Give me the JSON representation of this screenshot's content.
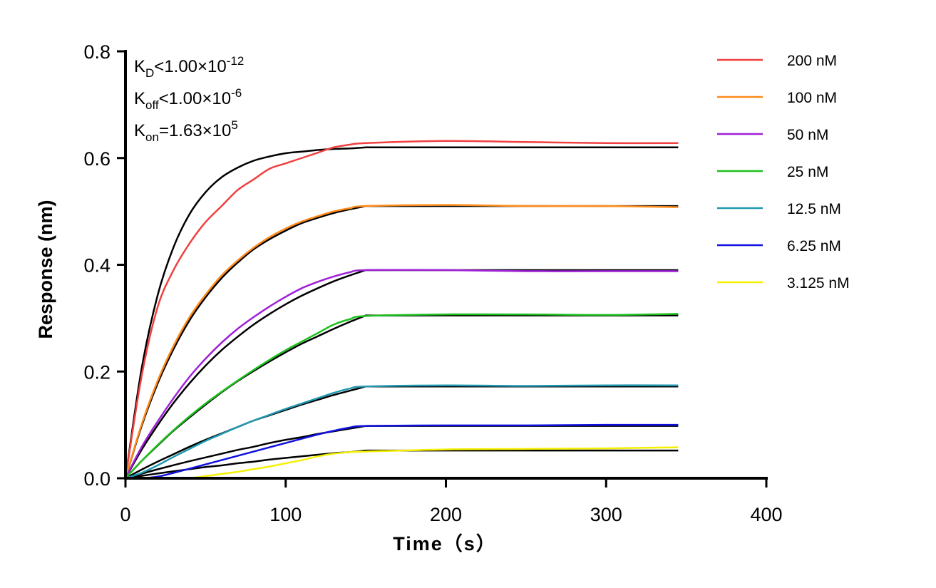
{
  "chart_data": {
    "type": "line",
    "xlabel": "Time（s）",
    "ylabel": "Response (nm)",
    "xlim": [
      0,
      400
    ],
    "ylim": [
      0,
      0.8
    ],
    "xticks": [
      "0",
      "100",
      "200",
      "300",
      "400"
    ],
    "yticks": [
      "0.0",
      "0.2",
      "0.4",
      "0.6",
      "0.8"
    ],
    "grid": false,
    "legend_position": "right",
    "annotations": [
      {
        "main": "K",
        "sub": "D",
        "rel": "<1.00×10",
        "sup": "-12"
      },
      {
        "main": "K",
        "sub": "off",
        "rel": "<1.00×10",
        "sup": "-6"
      },
      {
        "main": "K",
        "sub": "on",
        "rel": "=1.63×10",
        "sup": "5"
      }
    ],
    "x": [
      0,
      10,
      20,
      30,
      40,
      50,
      60,
      70,
      80,
      90,
      100,
      110,
      120,
      130,
      140,
      150,
      200,
      250,
      300,
      345
    ],
    "fit_color": "#000000",
    "series": [
      {
        "name": "200 nM",
        "color": "#f04040",
        "values": [
          0,
          0.19,
          0.32,
          0.39,
          0.44,
          0.48,
          0.51,
          0.54,
          0.56,
          0.58,
          0.59,
          0.6,
          0.61,
          0.62,
          0.625,
          0.628,
          0.632,
          0.63,
          0.628,
          0.628
        ],
        "fit": [
          0,
          0.204,
          0.342,
          0.433,
          0.495,
          0.536,
          0.564,
          0.582,
          0.595,
          0.603,
          0.609,
          0.612,
          0.615,
          0.617,
          0.618,
          0.62,
          0.62,
          0.62,
          0.62,
          0.62
        ]
      },
      {
        "name": "100 nM",
        "color": "#ff8c1a",
        "values": [
          0,
          0.1,
          0.182,
          0.248,
          0.302,
          0.344,
          0.38,
          0.408,
          0.432,
          0.452,
          0.468,
          0.481,
          0.491,
          0.5,
          0.506,
          0.51,
          0.512,
          0.51,
          0.51,
          0.508
        ],
        "fit": [
          0,
          0.097,
          0.177,
          0.242,
          0.296,
          0.339,
          0.375,
          0.404,
          0.429,
          0.448,
          0.464,
          0.478,
          0.488,
          0.497,
          0.504,
          0.51,
          0.51,
          0.51,
          0.51,
          0.51
        ]
      },
      {
        "name": "50 nM",
        "color": "#a020d8",
        "values": [
          0,
          0.058,
          0.106,
          0.15,
          0.19,
          0.224,
          0.254,
          0.28,
          0.302,
          0.322,
          0.34,
          0.356,
          0.368,
          0.378,
          0.386,
          0.39,
          0.39,
          0.388,
          0.388,
          0.388
        ],
        "fit": [
          0,
          0.053,
          0.099,
          0.141,
          0.178,
          0.211,
          0.24,
          0.265,
          0.288,
          0.308,
          0.326,
          0.342,
          0.356,
          0.369,
          0.38,
          0.39,
          0.39,
          0.39,
          0.39,
          0.39
        ]
      },
      {
        "name": "25 nM",
        "color": "#1ec01e",
        "values": [
          0,
          0.032,
          0.062,
          0.09,
          0.116,
          0.14,
          0.162,
          0.183,
          0.203,
          0.222,
          0.24,
          0.256,
          0.272,
          0.288,
          0.298,
          0.304,
          0.307,
          0.307,
          0.306,
          0.308
        ],
        "fit": [
          0,
          0.032,
          0.061,
          0.089,
          0.114,
          0.138,
          0.161,
          0.182,
          0.201,
          0.219,
          0.236,
          0.252,
          0.266,
          0.28,
          0.293,
          0.305,
          0.305,
          0.305,
          0.305,
          0.305
        ]
      },
      {
        "name": "12.5 nM",
        "color": "#2099b0",
        "values": [
          0,
          0.01,
          0.024,
          0.04,
          0.055,
          0.07,
          0.083,
          0.096,
          0.108,
          0.119,
          0.13,
          0.14,
          0.15,
          0.16,
          0.168,
          0.172,
          0.174,
          0.173,
          0.174,
          0.174
        ],
        "fit": [
          0,
          0.016,
          0.031,
          0.045,
          0.059,
          0.072,
          0.084,
          0.096,
          0.108,
          0.118,
          0.128,
          0.138,
          0.147,
          0.156,
          0.164,
          0.172,
          0.172,
          0.172,
          0.172,
          0.172
        ]
      },
      {
        "name": "6.25 nM",
        "color": "#1010e0",
        "values": [
          0,
          0,
          0.003,
          0.01,
          0.018,
          0.026,
          0.034,
          0.042,
          0.05,
          0.058,
          0.066,
          0.074,
          0.082,
          0.089,
          0.095,
          0.098,
          0.099,
          0.099,
          0.1,
          0.1
        ],
        "fit": [
          0,
          0.0085,
          0.0167,
          0.0245,
          0.032,
          0.039,
          0.046,
          0.053,
          0.059,
          0.066,
          0.072,
          0.077,
          0.083,
          0.088,
          0.093,
          0.098,
          0.098,
          0.098,
          0.098,
          0.098
        ]
      },
      {
        "name": "3.125 nM",
        "color": "#f5f000",
        "values": [
          null,
          null,
          null,
          null,
          0.0,
          0.004,
          0.008,
          0.012,
          0.017,
          0.022,
          0.028,
          0.034,
          0.041,
          0.046,
          0.049,
          0.05,
          0.054,
          0.055,
          0.056,
          0.058
        ],
        "fit": [
          0,
          0.0045,
          0.0089,
          0.013,
          0.017,
          0.021,
          0.024,
          0.028,
          0.031,
          0.035,
          0.038,
          0.041,
          0.044,
          0.047,
          0.049,
          0.052,
          0.052,
          0.052,
          0.052,
          0.052
        ]
      }
    ]
  }
}
